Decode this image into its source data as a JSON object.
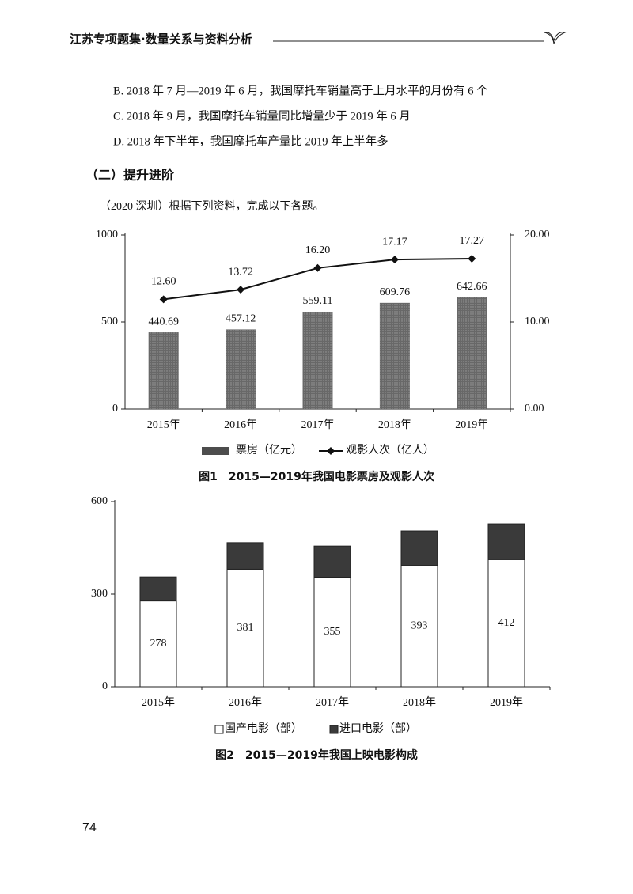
{
  "header": {
    "title": "江苏专项题集·数量关系与资料分析"
  },
  "options": [
    "B. 2018 年 7 月—2019 年 6 月，我国摩托车销量高于上月水平的月份有 6 个",
    "C. 2018 年 9 月，我国摩托车销量同比增量少于 2019 年 6 月",
    "D. 2018 年下半年，我国摩托车产量比 2019 年上半年多"
  ],
  "section": "（二）提升进阶",
  "intro": "（2020 深圳）根据下列资料，完成以下各题。",
  "chart_data": [
    {
      "type": "bar",
      "title": "图1　2015—2019年我国电影票房及观影人次",
      "categories": [
        "2015年",
        "2016年",
        "2017年",
        "2018年",
        "2019年"
      ],
      "series": [
        {
          "name": "票房（亿元）",
          "color": "#4d4d4d",
          "values": [
            440.69,
            457.12,
            559.11,
            609.76,
            642.66
          ]
        },
        {
          "name": "观影人次（亿人）",
          "color": "#111111",
          "type": "line",
          "axis": "y2",
          "values": [
            12.6,
            13.72,
            16.2,
            17.17,
            17.27
          ],
          "value_labels": [
            "12.60",
            "13.72",
            "16.20",
            "17.17",
            "17.27"
          ]
        }
      ],
      "ylim": [
        0,
        1000
      ],
      "yticks": [
        0,
        500,
        1000
      ],
      "y2lim": [
        0,
        20
      ],
      "y2ticks": [
        {
          "value": 0,
          "label": "0.00"
        },
        {
          "value": 10,
          "label": "10.00"
        },
        {
          "value": 20,
          "label": "20.00"
        }
      ],
      "grid": false
    },
    {
      "type": "stacked-bar",
      "title": "图2　2015—2019年我国上映电影构成",
      "categories": [
        "2015年",
        "2016年",
        "2017年",
        "2018年",
        "2019年"
      ],
      "series": [
        {
          "name": "国产电影（部）",
          "color": "#ffffff",
          "values": [
            278,
            381,
            355,
            393,
            412
          ],
          "labeled": true
        },
        {
          "name": "进口电影（部）",
          "color": "#3a3a3a",
          "values": [
            78,
            86,
            101,
            112,
            116
          ]
        }
      ],
      "ylim": [
        0,
        600
      ],
      "yticks": [
        0,
        300,
        600
      ],
      "grid": false
    }
  ],
  "page_number": "74"
}
